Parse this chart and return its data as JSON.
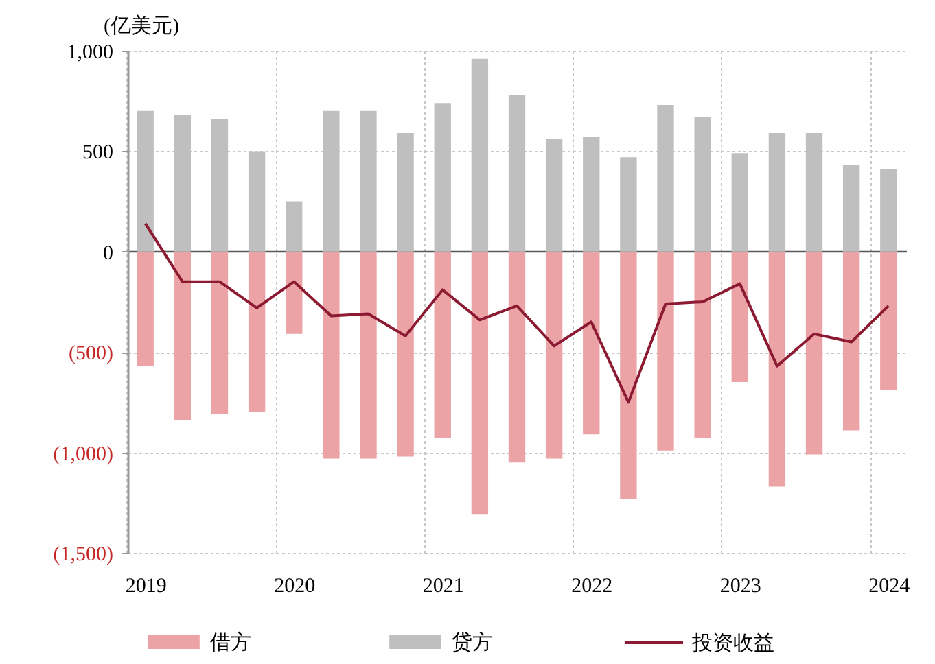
{
  "chart_data": {
    "type": "bar",
    "ylabel": "(亿美元)",
    "categories": [
      "2019",
      null,
      null,
      null,
      "2020",
      null,
      null,
      null,
      "2021",
      null,
      null,
      null,
      "2022",
      null,
      null,
      null,
      "2023",
      null,
      null,
      null,
      "2024"
    ],
    "series": [
      {
        "name": "借方",
        "color": "#eba3a5",
        "values": [
          -570,
          -840,
          -810,
          -800,
          -410,
          -1030,
          -1030,
          -1020,
          -930,
          -1310,
          -1050,
          -1030,
          -910,
          -1230,
          -990,
          -930,
          -650,
          -1170,
          -1010,
          -890,
          -690
        ]
      },
      {
        "name": "贷方",
        "color": "#bfbfbf",
        "values": [
          700,
          680,
          660,
          500,
          250,
          700,
          700,
          590,
          740,
          960,
          780,
          560,
          570,
          470,
          730,
          670,
          490,
          590,
          590,
          430,
          410
        ]
      },
      {
        "name": "投资收益",
        "type": "line",
        "color": "#8b1a32",
        "values": [
          140,
          -150,
          -150,
          -280,
          -150,
          -320,
          -310,
          -420,
          -190,
          -340,
          -270,
          -470,
          -350,
          -750,
          -260,
          -250,
          -160,
          -570,
          -410,
          -450,
          -270
        ]
      }
    ],
    "stacked": true,
    "ylim": [
      -1500,
      1000
    ],
    "yticks": [
      {
        "value": 1000,
        "label": "1,000"
      },
      500,
      0,
      {
        "value": -500,
        "label": "(500)"
      },
      {
        "value": -1000,
        "label": "(1,000)"
      },
      {
        "value": -1500,
        "label": "(1,500)"
      }
    ],
    "grid": true,
    "legend": "bottom"
  }
}
